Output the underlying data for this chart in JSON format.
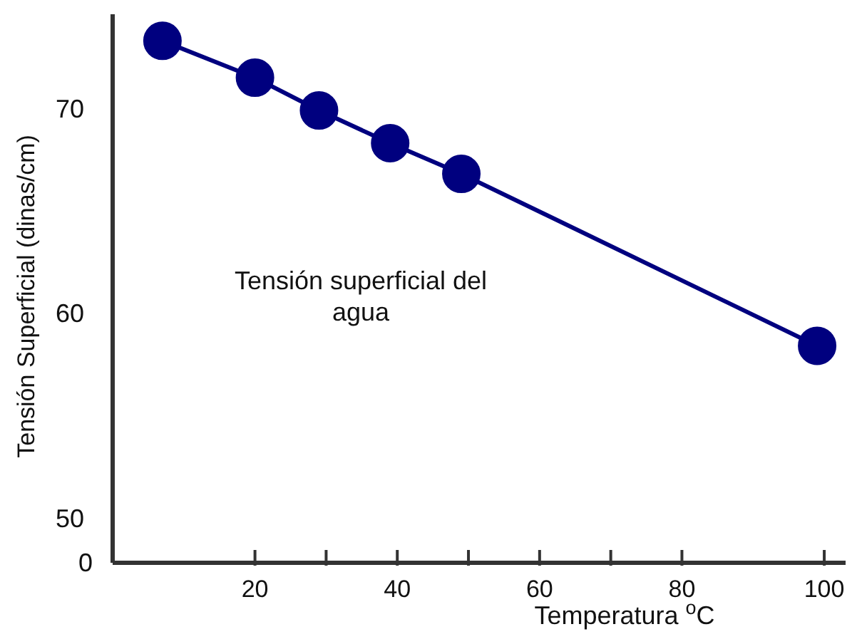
{
  "chart_data": {
    "type": "line",
    "xlabel": "Temperatura $^{o}$C",
    "ylabel": "Tensión Superficial (dinas/cm)",
    "annotations": [
      "Tensión superficial del\nagua",
      "0"
    ],
    "x": [
      7,
      20,
      29,
      39,
      49,
      99
    ],
    "series": [
      {
        "color": "#00007f",
        "values": [
          73.3,
          71.5,
          69.9,
          68.3,
          66.8,
          58.4
        ]
      }
    ],
    "xlim": [
      0,
      103
    ],
    "xticks": [
      20,
      {
        "value": 30,
        "label": null
      },
      40,
      {
        "value": 50,
        "label": null
      },
      60,
      {
        "value": 70,
        "label": null
      },
      80,
      100
    ],
    "ylim": [
      47.8,
      74.6
    ],
    "yticks": [
      50,
      60,
      70
    ],
    "grid": false,
    "legend": false,
    "marker": "circle",
    "line_style": "solid"
  }
}
